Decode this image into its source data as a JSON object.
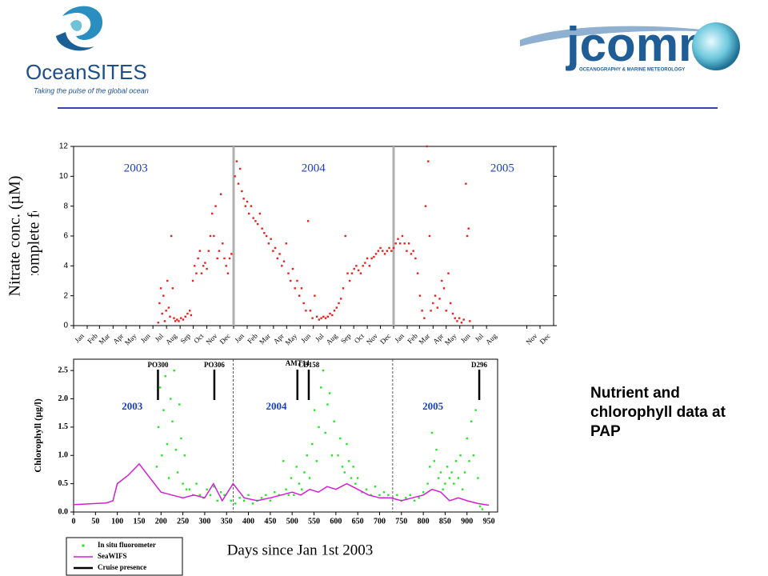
{
  "logos": {
    "left": "OceanSITES",
    "left_tagline": "Taking the pulse of the global ocean",
    "right": "jcomm",
    "right_tagline": "OCEANOGRAPHY & MARINE METEOROLOGY"
  },
  "caption": "Nutrient and chlorophyll data at PAP",
  "chart_data": [
    {
      "type": "scatter",
      "ylabel": "Nitrate conc. (µM)",
      "note": "QC not complete for all data",
      "color": "#e8201c",
      "xlim": [
        0,
        1095
      ],
      "ylim": [
        0,
        12
      ],
      "yticks": [
        0,
        2,
        4,
        6,
        8,
        10,
        12
      ],
      "xticks": [
        {
          "value": 0,
          "label": "Jan"
        },
        {
          "value": 31,
          "label": "Feb"
        },
        {
          "value": 59,
          "label": "Mar"
        },
        {
          "value": 90,
          "label": "Apr"
        },
        {
          "value": 120,
          "label": "May"
        },
        {
          "value": 151,
          "label": "Jun"
        },
        {
          "value": 181,
          "label": "Jul"
        },
        {
          "value": 212,
          "label": "Aug"
        },
        {
          "value": 243,
          "label": "Sep"
        },
        {
          "value": 273,
          "label": "Oct"
        },
        {
          "value": 304,
          "label": "Nov"
        },
        {
          "value": 334,
          "label": "Dec"
        },
        {
          "value": 365,
          "label": "Jan"
        },
        {
          "value": 396,
          "label": "Feb"
        },
        {
          "value": 425,
          "label": "Mar"
        },
        {
          "value": 456,
          "label": "Apr"
        },
        {
          "value": 486,
          "label": "May"
        },
        {
          "value": 517,
          "label": "Jun"
        },
        {
          "value": 547,
          "label": "Jul"
        },
        {
          "value": 578,
          "label": "Aug"
        },
        {
          "value": 609,
          "label": "Sep"
        },
        {
          "value": 639,
          "label": "Oct"
        },
        {
          "value": 670,
          "label": "Nov"
        },
        {
          "value": 700,
          "label": "Dec"
        },
        {
          "value": 730,
          "label": "Jan"
        },
        {
          "value": 761,
          "label": "Feb"
        },
        {
          "value": 789,
          "label": "Mar"
        },
        {
          "value": 820,
          "label": "Apr"
        },
        {
          "value": 850,
          "label": "May"
        },
        {
          "value": 881,
          "label": "Jun"
        },
        {
          "value": 911,
          "label": "Jul"
        },
        {
          "value": 942,
          "label": "Aug"
        },
        {
          "value": 1034,
          "label": "Nov"
        },
        {
          "value": 1064,
          "label": "Dec"
        }
      ],
      "dividers": [
        365,
        730
      ],
      "annotations": [
        {
          "text": "2003",
          "x": 142,
          "y": 10.5
        },
        {
          "text": "2004",
          "x": 547,
          "y": 10.5
        },
        {
          "text": "2005",
          "x": 978,
          "y": 10.5
        }
      ],
      "x": [
        193,
        196,
        199,
        202,
        205,
        208,
        211,
        214,
        217,
        220,
        223,
        226,
        229,
        232,
        236,
        240,
        245,
        250,
        255,
        260,
        265,
        268,
        272,
        276,
        280,
        284,
        288,
        292,
        296,
        300,
        304,
        308,
        312,
        316,
        320,
        324,
        328,
        332,
        336,
        340,
        344,
        348,
        352,
        356,
        360,
        368,
        372,
        376,
        380,
        384,
        388,
        392,
        396,
        400,
        405,
        410,
        415,
        420,
        425,
        430,
        435,
        440,
        445,
        450,
        455,
        460,
        465,
        470,
        475,
        480,
        485,
        490,
        495,
        500,
        505,
        510,
        515,
        520,
        525,
        530,
        535,
        540,
        545,
        550,
        555,
        560,
        565,
        570,
        575,
        580,
        585,
        590,
        595,
        600,
        605,
        610,
        615,
        620,
        625,
        630,
        635,
        640,
        645,
        650,
        655,
        660,
        665,
        670,
        675,
        680,
        685,
        690,
        695,
        700,
        705,
        710,
        715,
        720,
        725,
        730,
        735,
        740,
        745,
        750,
        755,
        760,
        765,
        770,
        775,
        780,
        785,
        790,
        795,
        800,
        803,
        806,
        809,
        812,
        815,
        820,
        825,
        830,
        835,
        840,
        845,
        850,
        855,
        860,
        865,
        870,
        875,
        880,
        885,
        890,
        895,
        898,
        901,
        904
      ],
      "values": [
        0.2,
        1.5,
        2.5,
        0.8,
        2,
        0.3,
        1,
        3,
        1.2,
        0.6,
        6,
        2.5,
        0.5,
        0.3,
        0.4,
        0.3,
        0.5,
        0.4,
        0.6,
        0.8,
        1,
        0.7,
        3,
        4,
        3.5,
        4.5,
        5,
        3.5,
        4,
        4.2,
        3.8,
        5,
        6,
        7.5,
        6,
        8,
        4.5,
        5,
        8.8,
        5.5,
        4.5,
        4,
        3.5,
        4.5,
        4.8,
        10,
        11,
        9.5,
        10.5,
        9,
        8.5,
        8,
        8.3,
        7.5,
        8,
        7.2,
        7,
        6.8,
        7.5,
        6.5,
        6.2,
        6,
        5.5,
        5.8,
        5,
        5.2,
        4.5,
        4.8,
        4,
        4.3,
        5.5,
        3.5,
        3,
        3.8,
        2.5,
        3,
        2,
        2.5,
        1.5,
        1,
        7,
        1,
        0.5,
        2,
        0.6,
        0.4,
        0.5,
        0.6,
        0.5,
        0.6,
        0.8,
        0.7,
        1,
        1.2,
        1.5,
        1.8,
        2.5,
        6,
        3.5,
        3,
        3.5,
        3.8,
        4,
        3.7,
        3.5,
        4,
        4.2,
        4.5,
        4,
        4.5,
        4.6,
        4.8,
        5,
        5.2,
        5,
        4.8,
        5,
        5.2,
        5,
        5.2,
        5.5,
        5.8,
        5.5,
        6,
        5.5,
        5,
        5.5,
        4.8,
        5,
        4.5,
        3.5,
        2,
        1,
        0.5,
        8,
        12,
        11,
        6,
        1,
        1.5,
        2,
        1.2,
        1.8,
        3,
        2.5,
        1,
        3.5,
        1.5,
        0.8,
        0.5,
        0.3,
        0.5,
        0.2,
        0.4,
        9.5,
        6,
        6.5,
        0.3
      ]
    },
    {
      "type": "scatter",
      "xlabel": "Days since Jan 1st 2003",
      "ylabel": "Chlorophyll (µg/l)",
      "xlim": [
        0,
        970
      ],
      "ylim": [
        0,
        2.7
      ],
      "xticks": [
        0,
        50,
        100,
        150,
        200,
        250,
        300,
        350,
        400,
        450,
        500,
        550,
        600,
        650,
        700,
        750,
        800,
        850,
        900,
        950
      ],
      "yticks": [
        {
          "value": 0,
          "label": "0.0"
        },
        0.5,
        {
          "value": 1,
          "label": "1.0"
        },
        1.5,
        {
          "value": 2,
          "label": "2.0"
        },
        2.5
      ],
      "dividers": [
        365,
        730
      ],
      "annotations": [
        {
          "text": "2003",
          "x": 134,
          "y": 1.85
        },
        {
          "text": "2004",
          "x": 464,
          "y": 1.85
        },
        {
          "text": "2005",
          "x": 822,
          "y": 1.85
        }
      ],
      "cruises": {
        "name": "Cruise presence",
        "color": "#000000",
        "items": [
          {
            "label": "PO300",
            "x": 193
          },
          {
            "label": "PO306",
            "x": 322
          },
          {
            "label": "AMT14",
            "x": 512
          },
          {
            "label": "CD158",
            "x": 538
          },
          {
            "label": "D296",
            "x": 928
          }
        ]
      },
      "series": [
        {
          "name": "In situ fluorometer",
          "color": "#22e622",
          "x": [
            190,
            194,
            198,
            202,
            206,
            210,
            214,
            218,
            222,
            226,
            230,
            234,
            238,
            242,
            246,
            250,
            254,
            258,
            265,
            273,
            281,
            289,
            297,
            305,
            313,
            321,
            329,
            337,
            345,
            360,
            370,
            380,
            390,
            400,
            410,
            420,
            430,
            440,
            450,
            460,
            470,
            480,
            486,
            492,
            498,
            504,
            510,
            516,
            522,
            528,
            534,
            540,
            546,
            551,
            556,
            561,
            566,
            571,
            576,
            581,
            586,
            591,
            596,
            605,
            610,
            615,
            620,
            625,
            630,
            635,
            640,
            645,
            650,
            660,
            670,
            680,
            690,
            700,
            710,
            720,
            730,
            740,
            750,
            760,
            770,
            780,
            790,
            800,
            810,
            815,
            820,
            825,
            830,
            835,
            840,
            845,
            850,
            855,
            860,
            865,
            870,
            875,
            880,
            885,
            890,
            895,
            900,
            905,
            910,
            915,
            920,
            925,
            930,
            935
          ],
          "values": [
            0.8,
            1.5,
            2.2,
            1.0,
            1.8,
            2.4,
            1.2,
            0.6,
            2.0,
            1.6,
            2.5,
            1.1,
            0.7,
            1.9,
            1.3,
            0.5,
            1.0,
            0.4,
            0.4,
            0.3,
            0.5,
            0.3,
            0.25,
            0.4,
            0.3,
            0.45,
            0.2,
            0.35,
            0.3,
            0.2,
            0.15,
            0.25,
            0.2,
            0.3,
            0.15,
            0.2,
            0.25,
            0.3,
            0.2,
            0.35,
            0.3,
            0.9,
            0.4,
            0.3,
            0.6,
            0.3,
            0.8,
            0.5,
            0.4,
            0.7,
            1.0,
            0.6,
            1.2,
            1.8,
            0.9,
            1.5,
            2.2,
            2.5,
            1.4,
            1.9,
            2.1,
            1.0,
            1.6,
            1.0,
            1.3,
            0.8,
            0.7,
            1.2,
            0.9,
            0.6,
            0.8,
            0.5,
            0.6,
            0.35,
            0.4,
            0.3,
            0.45,
            0.3,
            0.35,
            0.3,
            0.25,
            0.3,
            0.2,
            0.25,
            0.3,
            0.2,
            0.25,
            0.35,
            0.5,
            0.8,
            1.4,
            0.9,
            1.1,
            0.6,
            0.7,
            0.4,
            0.5,
            0.8,
            0.6,
            0.7,
            0.5,
            0.9,
            0.6,
            1.0,
            0.4,
            0.7,
            1.3,
            0.9,
            1.6,
            1.0,
            1.8,
            0.6,
            0.1,
            0.05
          ]
        },
        {
          "name": "SeaWIFS",
          "type": "line",
          "color": "#d21fd2",
          "x": [
            0,
            25,
            50,
            75,
            90,
            100,
            125,
            150,
            175,
            200,
            225,
            250,
            275,
            300,
            320,
            340,
            365,
            390,
            420,
            450,
            475,
            500,
            520,
            540,
            560,
            580,
            600,
            625,
            650,
            675,
            700,
            725,
            750,
            775,
            800,
            820,
            840,
            860,
            880,
            900,
            925,
            950
          ],
          "values": [
            0.13,
            0.14,
            0.15,
            0.16,
            0.2,
            0.5,
            0.65,
            0.85,
            0.6,
            0.35,
            0.3,
            0.25,
            0.3,
            0.25,
            0.5,
            0.2,
            0.5,
            0.25,
            0.2,
            0.25,
            0.3,
            0.35,
            0.3,
            0.4,
            0.35,
            0.45,
            0.4,
            0.5,
            0.4,
            0.3,
            0.25,
            0.25,
            0.2,
            0.25,
            0.3,
            0.4,
            0.35,
            0.2,
            0.25,
            0.2,
            0.15,
            0.12
          ]
        }
      ]
    }
  ]
}
